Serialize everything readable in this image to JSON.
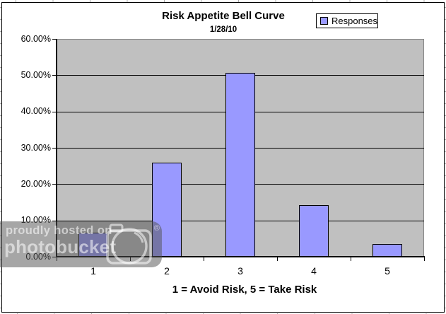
{
  "chart": {
    "title": "Risk Appetite Bell Curve",
    "subtitle": "1/28/10",
    "legend": {
      "label": "Responses"
    },
    "x_axis_title": "1 = Avoid Risk, 5 = Take Risk",
    "y_tick_labels": [
      "60.00%",
      "50.00%",
      "40.00%",
      "30.00%",
      "20.00%",
      "10.00%",
      "0.00%"
    ],
    "colors": {
      "bar_fill": "#9999FF",
      "bar_border": "#000000",
      "plot_background": "#C0C0C0",
      "gridline": "#000000",
      "chart_background": "#FFFFFF"
    }
  },
  "chart_data": {
    "type": "bar",
    "title": "Risk Appetite Bell Curve",
    "subtitle": "1/28/10",
    "xlabel": "1 = Avoid Risk, 5 = Take Risk",
    "ylabel": "",
    "categories": [
      "1",
      "2",
      "3",
      "4",
      "5"
    ],
    "series": [
      {
        "name": "Responses",
        "values": [
          6.6,
          25.9,
          50.6,
          14.2,
          3.5
        ]
      }
    ],
    "value_unit": "percent",
    "ylim": [
      0,
      60
    ],
    "y_tick_step": 10,
    "grid": true,
    "legend_position": "top-right",
    "plot_area_background": "#C0C0C0",
    "bar_color": "#9999FF"
  },
  "watermark": {
    "line1": "proudly hosted on",
    "line2": "photobucket",
    "registered": "®"
  }
}
